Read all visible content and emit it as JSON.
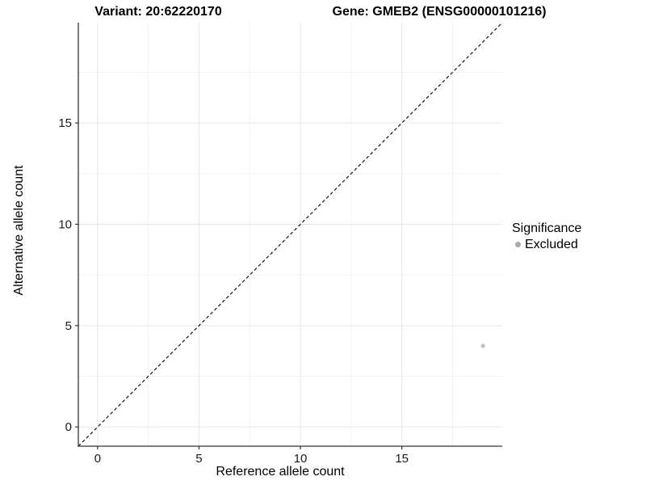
{
  "figure": {
    "variant_title": "Variant: 20:62220170",
    "gene_title": "Gene: GMEB2 (ENSG00000101216)"
  },
  "chart_data": {
    "type": "scatter",
    "xlabel": "Reference allele count",
    "ylabel": "Alternative allele count",
    "xlim": [
      -0.95,
      19.95
    ],
    "ylim": [
      -0.95,
      19.95
    ],
    "x_major_ticks": [
      0,
      5,
      10,
      15
    ],
    "y_major_ticks": [
      0,
      5,
      10,
      15
    ],
    "x_minor_ticks": [
      2.5,
      7.5,
      12.5,
      17.5
    ],
    "y_minor_ticks": [
      2.5,
      7.5,
      12.5,
      17.5
    ],
    "aspect": "equal",
    "grid": "major+minor",
    "reference_line": {
      "type": "identity",
      "slope": 1,
      "intercept": 0,
      "style": "dashed",
      "color": "#111111"
    },
    "series": [
      {
        "name": "Excluded",
        "color": "#c0c0c0",
        "points": [
          {
            "x": 19,
            "y": 4
          }
        ]
      }
    ],
    "legend": {
      "title": "Significance",
      "position": "right",
      "items": [
        {
          "label": "Excluded",
          "color": "#a9a9a9"
        }
      ]
    },
    "style_colors": {
      "axis_line": "#333333",
      "tick_mark": "#333333",
      "grid_major": "#e6e6e6",
      "grid_minor": "#f2f2f2",
      "background": "#ffffff"
    }
  }
}
